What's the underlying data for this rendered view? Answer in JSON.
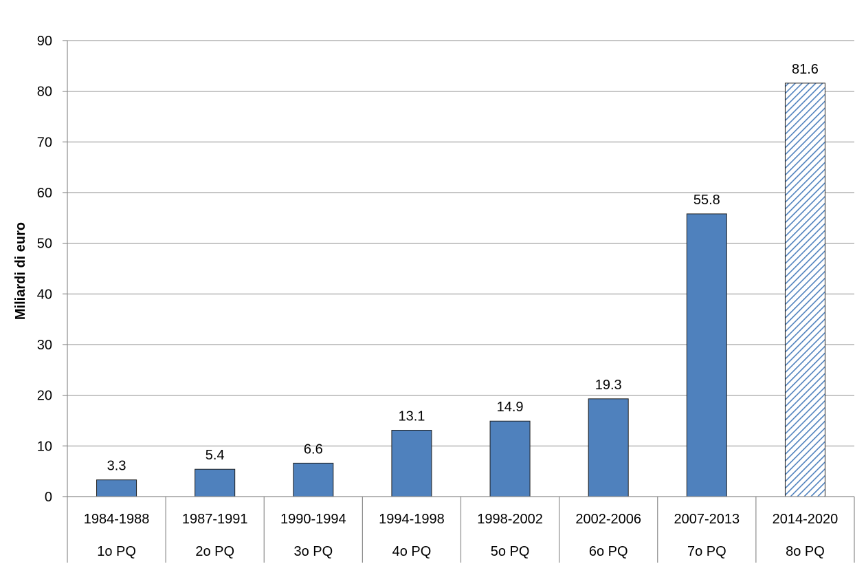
{
  "chart_data": {
    "type": "bar",
    "categories": [
      "1984-1988",
      "1987-1991",
      "1990-1994",
      "1994-1998",
      "1998-2002",
      "2002-2006",
      "2007-2013",
      "2014-2020"
    ],
    "sub_categories": [
      "1o PQ",
      "2o PQ",
      "3o PQ",
      "4o PQ",
      "5o PQ",
      "6o PQ",
      "7o PQ",
      "8o PQ"
    ],
    "values": [
      3.3,
      5.4,
      6.6,
      13.1,
      14.9,
      19.3,
      55.8,
      81.6
    ],
    "data_labels": [
      "3.3",
      "5.4",
      "6.6",
      "13.1",
      "14.9",
      "19.3",
      "55.8",
      "81.6"
    ],
    "hatched": [
      false,
      false,
      false,
      false,
      false,
      false,
      false,
      true
    ],
    "title": "",
    "xlabel": "",
    "ylabel": "Miliardi di euro",
    "ylim": [
      0,
      90
    ],
    "yticks": [
      0,
      10,
      20,
      30,
      40,
      50,
      60,
      70,
      80,
      90
    ],
    "grid": true,
    "colors": {
      "bar": "#4f81bd",
      "hatch": "#4f81bd",
      "grid": "#8c8c8c"
    }
  }
}
